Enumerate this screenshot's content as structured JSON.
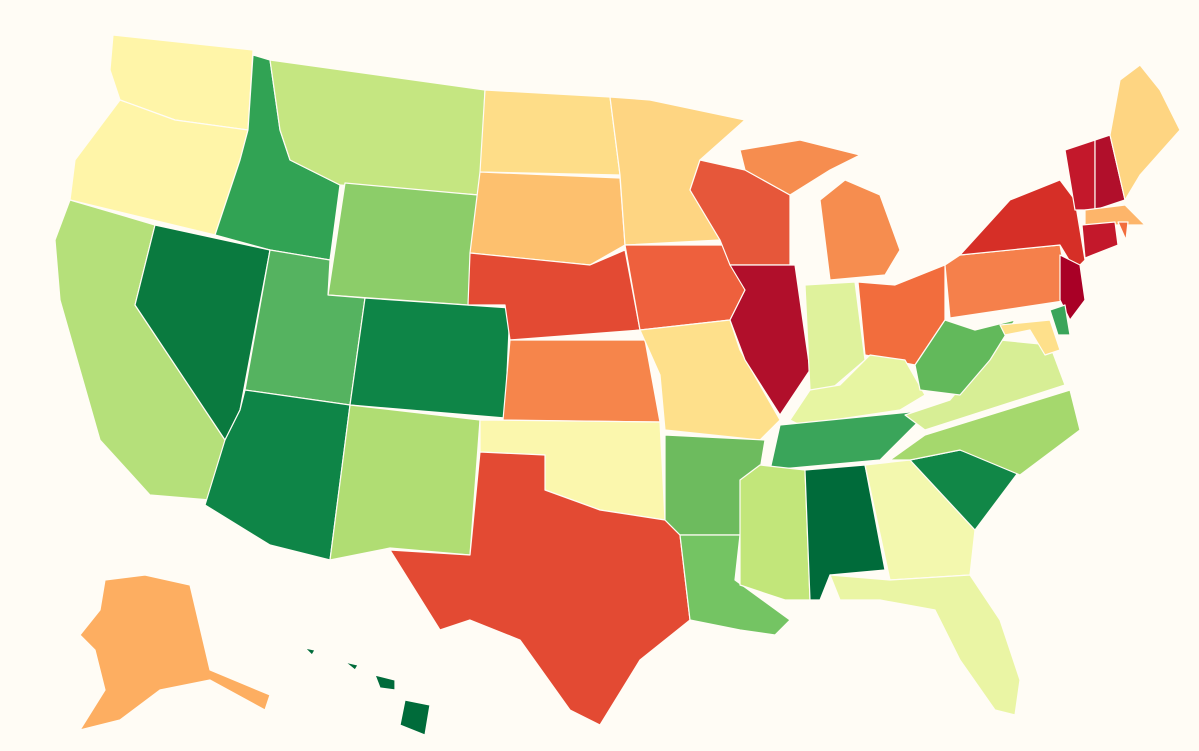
{
  "map": {
    "background": "#fffcf5",
    "border_color": "#fffcf5",
    "regions": [
      {
        "color": "#fff5a8"
      },
      {
        "color": "#fff5a8"
      },
      {
        "color": "#b5e07a"
      },
      {
        "color": "#31a354"
      },
      {
        "color": "#0a7a3f"
      },
      {
        "color": "#c5e681"
      },
      {
        "color": "#8ccd69"
      },
      {
        "color": "#55b360"
      },
      {
        "color": "#0e8547"
      },
      {
        "color": "#0e8547"
      },
      {
        "color": "#b0dd73"
      },
      {
        "color": "#fedd88"
      },
      {
        "color": "#fdc06e"
      },
      {
        "color": "#e34a33"
      },
      {
        "color": "#f6854b"
      },
      {
        "color": "#fbf7ad"
      },
      {
        "color": "#e34a33"
      },
      {
        "color": "#fed582"
      },
      {
        "color": "#ee603d"
      },
      {
        "color": "#fee08b"
      },
      {
        "color": "#6dbb5e"
      },
      {
        "color": "#74c463"
      },
      {
        "color": "#e6573a"
      },
      {
        "color": "#b10f2b"
      },
      {
        "color": "#f68d4f"
      },
      {
        "color": "#dff29c"
      },
      {
        "color": "#f26d3d"
      },
      {
        "color": "#e7f5a2"
      },
      {
        "color": "#3aa55a"
      },
      {
        "color": "#c2e67a"
      },
      {
        "color": "#006b3a"
      },
      {
        "color": "#f3f8ae"
      },
      {
        "color": "#eaf5a4"
      },
      {
        "color": "#118747"
      },
      {
        "color": "#a5d86d"
      },
      {
        "color": "#d7ee95"
      },
      {
        "color": "#62b95b"
      },
      {
        "color": "#f5804b"
      },
      {
        "color": "#d62f27"
      },
      {
        "color": "#a90026"
      },
      {
        "color": "#fee08b"
      },
      {
        "color": "#3aa55a"
      },
      {
        "color": "#c3182b"
      },
      {
        "color": "#b10f2b"
      },
      {
        "color": "#fed582"
      },
      {
        "color": "#fdb56a"
      },
      {
        "color": "#c3182b"
      },
      {
        "color": "#f26d3d"
      },
      {
        "color": "#fdae61"
      },
      {
        "color": "#006b3a"
      }
    ]
  }
}
